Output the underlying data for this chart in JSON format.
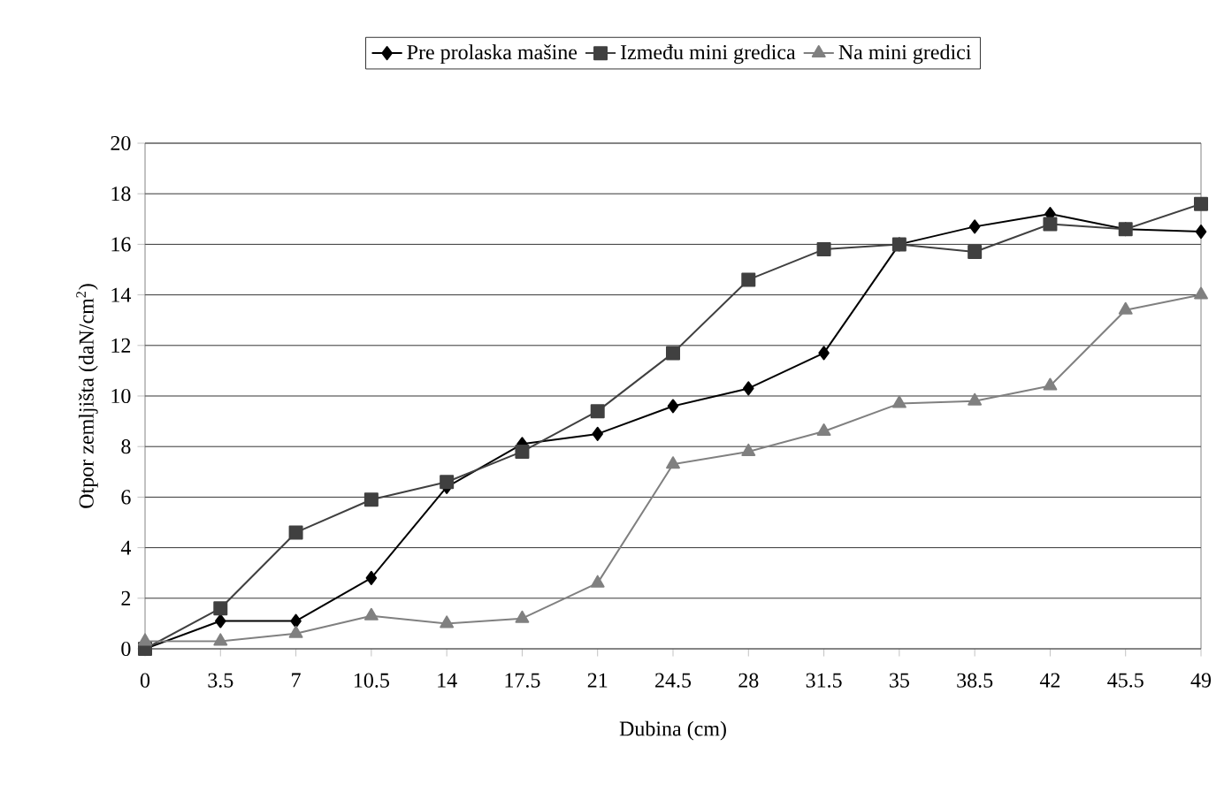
{
  "chart_data": {
    "type": "line",
    "xlabel": "Dubina (cm)",
    "ylabel": "Otpor zemljišta (daN/cm$^{2}$)",
    "x": [
      0,
      3.5,
      7,
      10.5,
      14,
      17.5,
      21,
      24.5,
      28,
      31.5,
      35,
      38.5,
      42,
      45.5,
      49
    ],
    "series": [
      {
        "name": "Pre prolaska mašine",
        "color": "#000000",
        "marker": "diamond",
        "values": [
          0,
          1.1,
          1.1,
          2.8,
          6.4,
          8.1,
          8.5,
          9.6,
          10.3,
          11.7,
          16.0,
          16.7,
          17.2,
          16.6,
          16.5
        ]
      },
      {
        "name": "Između mini gredica",
        "color": "#404040",
        "marker": "square",
        "values": [
          0,
          1.6,
          4.6,
          5.9,
          6.6,
          7.8,
          9.4,
          11.7,
          14.6,
          15.8,
          16.0,
          15.7,
          16.8,
          16.6,
          17.6
        ]
      },
      {
        "name": "Na mini gredici",
        "color": "#808080",
        "marker": "triangle",
        "values": [
          0.3,
          0.3,
          0.6,
          1.3,
          1.0,
          1.2,
          2.6,
          7.3,
          7.8,
          8.6,
          9.7,
          9.8,
          10.4,
          13.4,
          14.0
        ]
      }
    ],
    "xlim": [
      0,
      49
    ],
    "xticks": [
      0,
      3.5,
      7,
      10.5,
      14,
      17.5,
      21,
      24.5,
      28,
      31.5,
      35,
      38.5,
      42,
      45.5,
      49
    ],
    "ylim": [
      0,
      20
    ],
    "yticks": [
      0,
      2,
      4,
      6,
      8,
      10,
      12,
      14,
      16,
      18,
      20
    ],
    "grid": "y",
    "legend": "top"
  }
}
